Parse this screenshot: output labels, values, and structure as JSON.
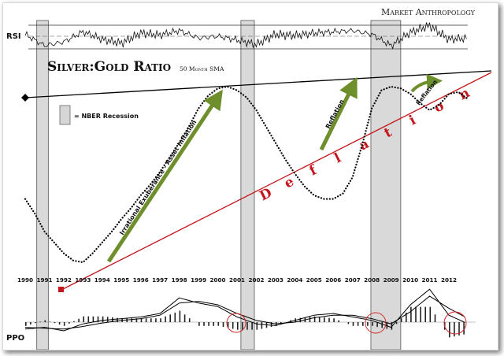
{
  "brand": "Market Anthropology",
  "title": "Silver:Gold Ratio",
  "subtitle": "50 Month SMA",
  "legend_label": "= NBER Recession",
  "panels": {
    "rsi": "RSI",
    "ppo": "PPO"
  },
  "annotations": {
    "bull": "Irrational Exuberance - Asset Inflation",
    "reflation1": "Reflation",
    "reflation2": "Reflation",
    "deflation": [
      "D",
      "e",
      "f",
      "l",
      "a",
      "t",
      "i",
      "o",
      "n"
    ]
  },
  "colors": {
    "recession_fill": "#cfcfcf",
    "arrow_green": "#6e8f2c",
    "deflation_red": "#c4161c",
    "circle_red": "#d12a2a"
  },
  "chart_data": {
    "type": "line",
    "x_ticks": [
      "1990",
      "1991",
      "1992",
      "1993",
      "1994",
      "1995",
      "1996",
      "1997",
      "1998",
      "1999",
      "2000",
      "2001",
      "2002",
      "2003",
      "2004",
      "2005",
      "2006",
      "2007",
      "2008",
      "2009",
      "2010",
      "2011",
      "2012"
    ],
    "recessions": [
      [
        1990.6,
        1991.2
      ],
      [
        2001.2,
        2001.9
      ],
      [
        2007.95,
        2009.5
      ]
    ],
    "series": [
      {
        "name": "Silver:Gold Ratio",
        "x": [
          1990,
          1990.5,
          1991,
          1991.5,
          1992,
          1992.5,
          1993,
          1993.5,
          1994,
          1994.5,
          1995,
          1995.5,
          1996,
          1996.5,
          1997,
          1997.5,
          1998,
          1998.5,
          1999,
          1999.5,
          2000,
          2000.5,
          2001,
          2001.5,
          2002,
          2002.5,
          2003,
          2003.5,
          2004,
          2004.5,
          2005,
          2005.5,
          2006,
          2006.5,
          2007,
          2007.5,
          2008,
          2008.5,
          2009,
          2009.5,
          2010,
          2010.5,
          2011,
          2011.5,
          2012,
          2012.5,
          2013
        ],
        "y": [
          0.38,
          0.3,
          0.2,
          0.14,
          0.08,
          0.04,
          0.03,
          0.08,
          0.14,
          0.2,
          0.27,
          0.33,
          0.4,
          0.46,
          0.53,
          0.61,
          0.69,
          0.78,
          0.88,
          0.95,
          0.99,
          1.0,
          0.98,
          0.94,
          0.87,
          0.78,
          0.69,
          0.6,
          0.52,
          0.45,
          0.4,
          0.38,
          0.38,
          0.41,
          0.5,
          0.68,
          0.88,
          0.98,
          1.0,
          0.99,
          0.96,
          0.91,
          0.87,
          0.9,
          0.96,
          0.97,
          0.93
        ]
      }
    ],
    "rsi": {
      "x": [
        1990,
        1991,
        1992,
        1993,
        1994,
        1995,
        1996,
        1997,
        1998,
        1999,
        2000,
        2001,
        2002,
        2003,
        2004,
        2005,
        2006,
        2007,
        2008,
        2009,
        2010,
        2011,
        2012,
        2013
      ],
      "y": [
        58,
        40,
        46,
        62,
        50,
        44,
        60,
        57,
        64,
        52,
        55,
        49,
        42,
        58,
        56,
        60,
        62,
        64,
        58,
        40,
        61,
        72,
        50,
        52
      ]
    },
    "ppo": {
      "x": [
        1990,
        1991,
        1992,
        1993,
        1994,
        1995,
        1996,
        1997,
        1998,
        1999,
        2000,
        2001,
        2002,
        2003,
        2004,
        2005,
        2006,
        2007,
        2008,
        2009,
        2010,
        2011,
        2012,
        2013
      ],
      "y": [
        -8,
        -6,
        -10,
        -2,
        2,
        4,
        6,
        10,
        28,
        22,
        18,
        6,
        -2,
        -4,
        2,
        8,
        10,
        6,
        2,
        -6,
        20,
        38,
        8,
        -2
      ],
      "signal": [
        -6,
        -7,
        -8,
        -5,
        -1,
        2,
        4,
        8,
        22,
        24,
        20,
        10,
        2,
        -2,
        0,
        5,
        8,
        8,
        4,
        -2,
        12,
        30,
        16,
        4
      ]
    }
  }
}
